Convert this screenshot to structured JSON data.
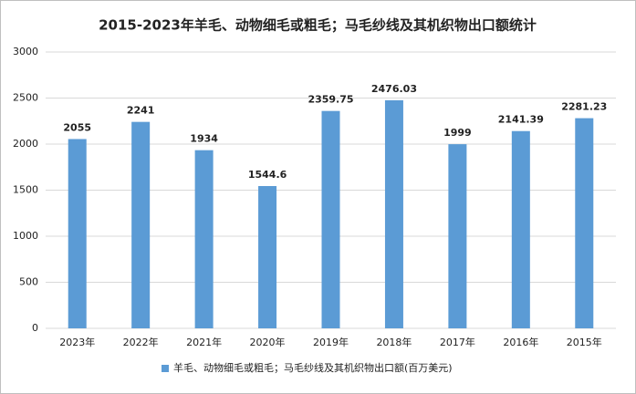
{
  "chart_data": {
    "type": "bar",
    "title": "2015-2023年羊毛、动物细毛或粗毛；马毛纱线及其机织物出口额统计",
    "categories": [
      "2023年",
      "2022年",
      "2021年",
      "2020年",
      "2019年",
      "2018年",
      "2017年",
      "2016年",
      "2015年"
    ],
    "series": [
      {
        "name": "羊毛、动物细毛或粗毛；马毛纱线及其机织物出口额(百万美元)",
        "color": "#5b9bd5",
        "values": [
          2055,
          2241,
          1934,
          1544.6,
          2359.75,
          2476.03,
          1999,
          2141.39,
          2281.23
        ]
      }
    ],
    "ylim": [
      0,
      3000
    ],
    "yticks": [
      0,
      500,
      1000,
      1500,
      2000,
      2500,
      3000
    ],
    "grid": true,
    "legend": "bottom"
  }
}
